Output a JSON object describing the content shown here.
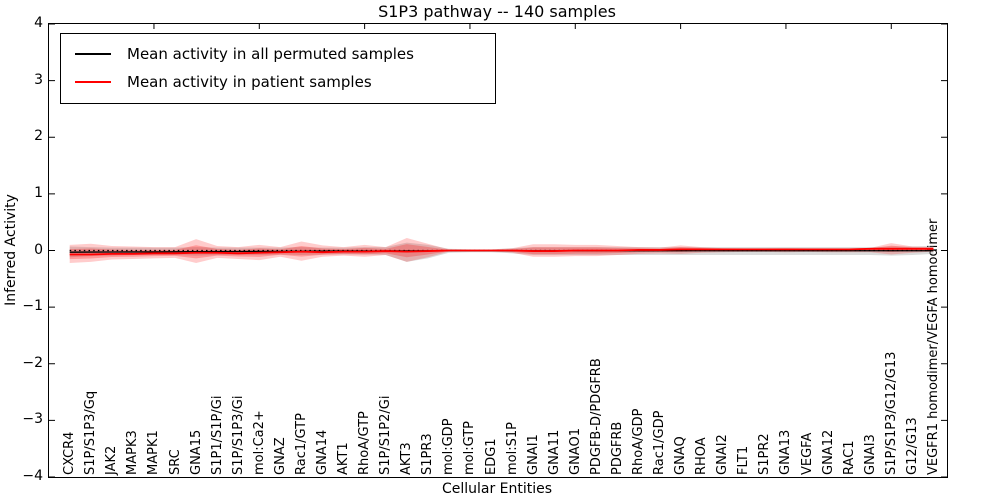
{
  "chart_data": {
    "type": "line",
    "title": "S1P3 pathway -- 140 samples",
    "xlabel": "Cellular Entities",
    "ylabel": "Inferred Activity",
    "ylim": [
      -4,
      4
    ],
    "yticks": [
      "4",
      "3",
      "2",
      "1",
      "0",
      "−1",
      "−2",
      "−3",
      "−4"
    ],
    "grid": false,
    "legend_position": "upper left",
    "legend": [
      {
        "label": "Mean activity in all permuted samples",
        "color": "#000000"
      },
      {
        "label": "Mean activity in patient samples",
        "color": "#ff0000"
      }
    ],
    "zero_line": {
      "value": 0,
      "style": "dotted",
      "color": "#000000"
    },
    "categories": [
      "CXCR4",
      "S1P/S1P3/Gq",
      "JAK2",
      "MAPK3",
      "MAPK1",
      "SRC",
      "GNA15",
      "S1P1/S1P/Gi",
      "S1P/S1P3/Gi",
      "mol:Ca2+",
      "GNAZ",
      "Rac1/GTP",
      "GNA14",
      "AKT1",
      "RhoA/GTP",
      "S1P/S1P2/Gi",
      "AKT3",
      "S1PR3",
      "mol:GDP",
      "mol:GTP",
      "EDG1",
      "mol:S1P",
      "GNAI1",
      "GNA11",
      "GNAO1",
      "PDGFB-D/PDGFRB",
      "PDGFRB",
      "RhoA/GDP",
      "Rac1/GDP",
      "GNAQ",
      "RHOA",
      "GNAI2",
      "FLT1",
      "S1PR2",
      "GNA13",
      "VEGFA",
      "GNA12",
      "RAC1",
      "GNAI3",
      "S1P/S1P3/G12/G13",
      "G12/G13",
      "VEGFR1 homodimer/VEGFA homodimer"
    ],
    "series": [
      {
        "name": "Mean activity in all permuted samples",
        "color": "#000000",
        "band_color": "#999999",
        "values": [
          -0.03,
          -0.028,
          -0.027,
          -0.025,
          -0.024,
          -0.022,
          -0.021,
          -0.019,
          -0.018,
          -0.016,
          -0.015,
          -0.013,
          -0.012,
          -0.01,
          -0.009,
          -0.008,
          -0.006,
          -0.005,
          -0.005,
          -0.004,
          -0.004,
          -0.004,
          -0.005,
          -0.005,
          -0.005,
          -0.005,
          -0.005,
          -0.005,
          -0.005,
          -0.005,
          -0.005,
          -0.004,
          -0.004,
          -0.004,
          -0.004,
          -0.004,
          -0.004,
          -0.004,
          -0.004,
          -0.004,
          -0.004,
          -0.004
        ],
        "band_hi": [
          0.07,
          0.06,
          0.05,
          0.05,
          0.05,
          0.05,
          0.06,
          0.05,
          0.05,
          0.05,
          0.05,
          0.06,
          0.05,
          0.05,
          0.06,
          0.06,
          0.14,
          0.1,
          0.03,
          0.02,
          0.02,
          0.04,
          0.06,
          0.06,
          0.06,
          0.06,
          0.06,
          0.06,
          0.06,
          0.06,
          0.06,
          0.06,
          0.06,
          0.06,
          0.06,
          0.06,
          0.06,
          0.06,
          0.06,
          0.07,
          0.07,
          0.08
        ],
        "band_lo": [
          -0.12,
          -0.1,
          -0.09,
          -0.08,
          -0.08,
          -0.08,
          -0.09,
          -0.08,
          -0.08,
          -0.08,
          -0.07,
          -0.08,
          -0.07,
          -0.07,
          -0.07,
          -0.08,
          -0.2,
          -0.14,
          -0.04,
          -0.03,
          -0.03,
          -0.05,
          -0.08,
          -0.08,
          -0.08,
          -0.08,
          -0.08,
          -0.08,
          -0.08,
          -0.08,
          -0.08,
          -0.08,
          -0.08,
          -0.08,
          -0.08,
          -0.08,
          -0.08,
          -0.08,
          -0.08,
          -0.09,
          -0.08,
          -0.06
        ]
      },
      {
        "name": "Mean activity in patient samples",
        "color": "#ff0000",
        "band_color": "#ff0000",
        "values": [
          -0.07,
          -0.07,
          -0.06,
          -0.06,
          -0.05,
          -0.05,
          -0.04,
          -0.04,
          -0.05,
          -0.04,
          -0.03,
          -0.02,
          -0.03,
          -0.02,
          -0.02,
          -0.01,
          -0.02,
          -0.01,
          0.0,
          0.0,
          0.0,
          0.0,
          -0.01,
          -0.01,
          0.0,
          0.0,
          0.0,
          0.01,
          0.01,
          0.02,
          0.02,
          0.02,
          0.02,
          0.02,
          0.02,
          0.02,
          0.02,
          0.02,
          0.03,
          0.03,
          0.03,
          0.03
        ],
        "band_hi": [
          0.1,
          0.12,
          0.08,
          0.07,
          0.06,
          0.06,
          0.2,
          0.08,
          0.06,
          0.1,
          0.06,
          0.16,
          0.09,
          0.06,
          0.1,
          0.06,
          0.22,
          0.12,
          0.02,
          0.015,
          0.015,
          0.04,
          0.11,
          0.11,
          0.1,
          0.1,
          0.08,
          0.06,
          0.05,
          0.09,
          0.06,
          0.04,
          0.035,
          0.035,
          0.04,
          0.035,
          0.035,
          0.035,
          0.045,
          0.13,
          0.07,
          0.06
        ],
        "band_lo": [
          -0.22,
          -0.2,
          -0.16,
          -0.15,
          -0.14,
          -0.13,
          -0.22,
          -0.13,
          -0.15,
          -0.17,
          -0.11,
          -0.18,
          -0.11,
          -0.09,
          -0.11,
          -0.08,
          -0.2,
          -0.12,
          -0.02,
          -0.015,
          -0.015,
          -0.04,
          -0.11,
          -0.11,
          -0.1,
          -0.1,
          -0.08,
          -0.06,
          -0.05,
          -0.06,
          -0.04,
          -0.03,
          -0.025,
          -0.025,
          -0.03,
          -0.025,
          -0.03,
          -0.03,
          -0.03,
          -0.07,
          -0.04,
          -0.02
        ]
      }
    ]
  }
}
